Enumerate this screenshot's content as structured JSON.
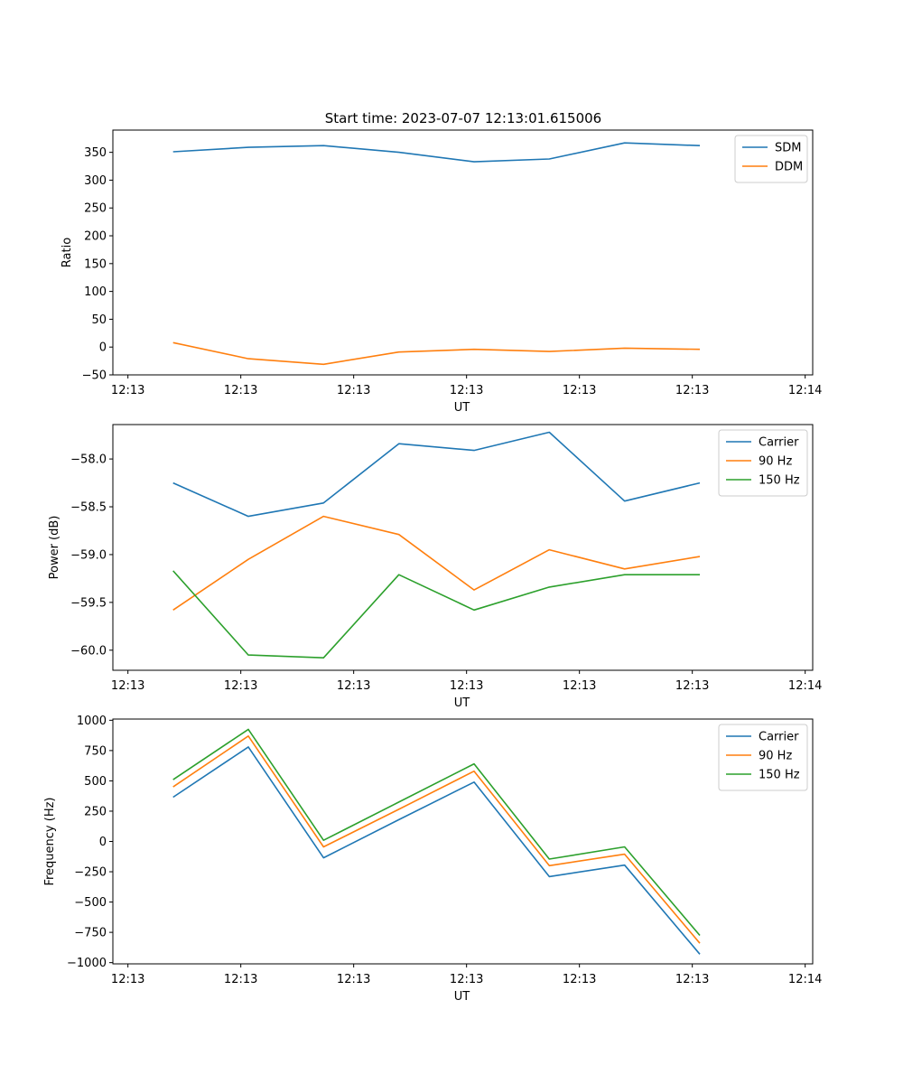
{
  "figure_title": "Start time: 2023-07-07 12:13:01.615006",
  "colors": {
    "blue": "#1f77b4",
    "orange": "#ff7f0e",
    "green": "#2ca02c"
  },
  "chart_data": [
    {
      "type": "line",
      "title": "Start time: 2023-07-07 12:13:01.615006",
      "xlabel": "UT",
      "ylabel": "Ratio",
      "x": [
        1,
        2,
        3,
        4,
        5,
        6,
        7,
        8
      ],
      "xlim": [
        0.2,
        9.5
      ],
      "xticks": [
        0.4,
        1.9,
        3.4,
        4.9,
        6.4,
        7.9,
        9.4
      ],
      "xtick_labels": [
        "12:13",
        "12:13",
        "12:13",
        "12:13",
        "12:13",
        "12:13",
        "12:14"
      ],
      "ylim": [
        -50,
        390
      ],
      "yticks": [
        -50,
        0,
        50,
        100,
        150,
        200,
        250,
        300,
        350
      ],
      "ytick_labels": [
        "−50",
        "0",
        "50",
        "100",
        "150",
        "200",
        "250",
        "300",
        "350"
      ],
      "legend": "top-right",
      "series": [
        {
          "name": "SDM",
          "color": "#1f77b4",
          "values": [
            351,
            359,
            362,
            350,
            333,
            338,
            367,
            362
          ]
        },
        {
          "name": "DDM",
          "color": "#ff7f0e",
          "values": [
            8,
            -21,
            -31,
            -9,
            -4,
            -8,
            -2,
            -4
          ]
        }
      ]
    },
    {
      "type": "line",
      "title": "",
      "xlabel": "UT",
      "ylabel": "Power (dB)",
      "x": [
        1,
        2,
        3,
        4,
        5,
        6,
        7,
        8
      ],
      "xlim": [
        0.2,
        9.5
      ],
      "xticks": [
        0.4,
        1.9,
        3.4,
        4.9,
        6.4,
        7.9,
        9.4
      ],
      "xtick_labels": [
        "12:13",
        "12:13",
        "12:13",
        "12:13",
        "12:13",
        "12:13",
        "12:14"
      ],
      "ylim": [
        -60.21,
        -57.64
      ],
      "yticks": [
        -60.0,
        -59.5,
        -59.0,
        -58.5,
        -58.0
      ],
      "ytick_labels": [
        "−60.0",
        "−59.5",
        "−59.0",
        "−58.5",
        "−58.0"
      ],
      "legend": "top-right",
      "series": [
        {
          "name": "Carrier",
          "color": "#1f77b4",
          "values": [
            -58.25,
            -58.6,
            -58.46,
            -57.84,
            -57.91,
            -57.72,
            -58.44,
            -58.25
          ]
        },
        {
          "name": "90 Hz",
          "color": "#ff7f0e",
          "values": [
            -59.58,
            -59.05,
            -58.6,
            -58.79,
            -59.37,
            -58.95,
            -59.15,
            -59.02
          ]
        },
        {
          "name": "150 Hz",
          "color": "#2ca02c",
          "values": [
            -59.17,
            -60.05,
            -60.08,
            -59.21,
            -59.58,
            -59.34,
            -59.21,
            -59.21
          ]
        }
      ]
    },
    {
      "type": "line",
      "title": "",
      "xlabel": "UT",
      "ylabel": "Frequency (Hz)",
      "x": [
        1,
        2,
        3,
        4,
        5,
        6,
        7,
        8
      ],
      "xlim": [
        0.2,
        9.5
      ],
      "xticks": [
        0.4,
        1.9,
        3.4,
        4.9,
        6.4,
        7.9,
        9.4
      ],
      "xtick_labels": [
        "12:13",
        "12:13",
        "12:13",
        "12:13",
        "12:13",
        "12:13",
        "12:14"
      ],
      "ylim": [
        -1010,
        1010
      ],
      "yticks": [
        -1000,
        -750,
        -500,
        -250,
        0,
        250,
        500,
        750,
        1000
      ],
      "ytick_labels": [
        "−1000",
        "−750",
        "−500",
        "−250",
        "0",
        "250",
        "500",
        "750",
        "1000"
      ],
      "legend": "top-right",
      "series": [
        {
          "name": "Carrier",
          "color": "#1f77b4",
          "values": [
            365,
            780,
            -135,
            180,
            490,
            -290,
            -195,
            -930
          ]
        },
        {
          "name": "90 Hz",
          "color": "#ff7f0e",
          "values": [
            450,
            870,
            -45,
            265,
            580,
            -200,
            -105,
            -840
          ]
        },
        {
          "name": "150 Hz",
          "color": "#2ca02c",
          "values": [
            510,
            925,
            10,
            325,
            640,
            -145,
            -45,
            -775
          ]
        }
      ]
    }
  ]
}
